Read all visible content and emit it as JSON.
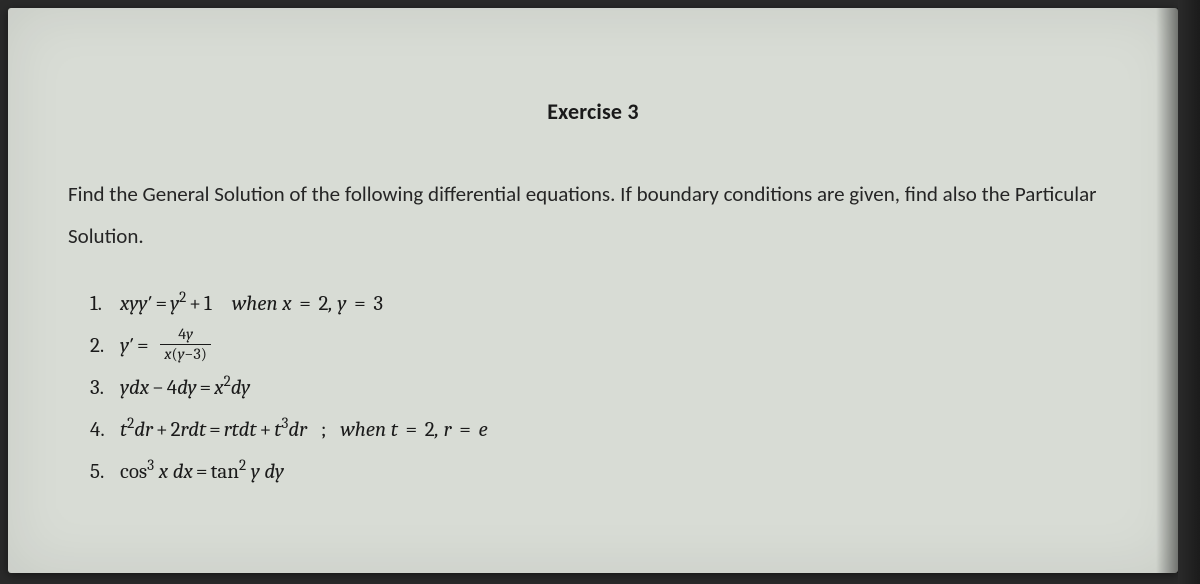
{
  "title": "Exercise 3",
  "instructions": "Find the General Solution of the following differential equations. If boundary conditions are given, find also the Particular Solution.",
  "problems": {
    "p1": {
      "num": "1.",
      "eq_lhs": "xyy′",
      "eq_rhs": "y² + 1",
      "cond": "when x = 2, y = 3"
    },
    "p2": {
      "num": "2.",
      "lhs": "y′",
      "frac_num": "4y",
      "frac_den": "x(y−3)"
    },
    "p3": {
      "num": "3.",
      "expr": "ydx − 4dy = x²dy"
    },
    "p4": {
      "num": "4.",
      "expr": "t²dr + 2rdt = rtdt + t³dr",
      "cond": "when t = 2, r = e"
    },
    "p5": {
      "num": "5.",
      "expr": "cos³ x dx = tan² y dy"
    }
  },
  "colors": {
    "page_bg": "#d8dcd5",
    "outer_bg": "#2a2a2a",
    "text": "#1a1a1a"
  },
  "typography": {
    "title_fontsize": 22,
    "body_fontsize": 21,
    "math_family": "Cambria Math"
  }
}
